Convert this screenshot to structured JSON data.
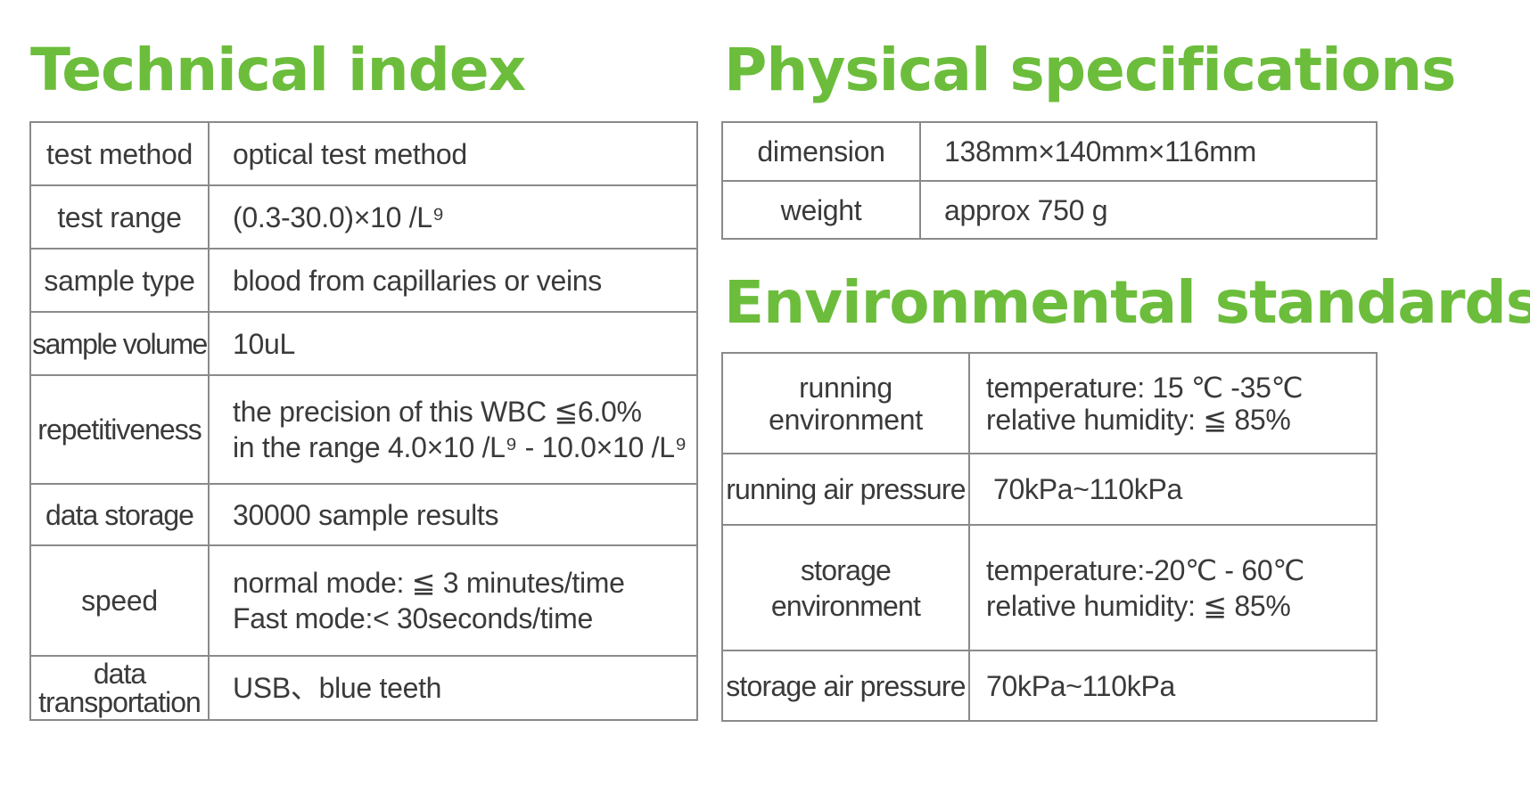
{
  "technical_index": {
    "title": "Technical index",
    "rows": [
      {
        "label": "test method",
        "value": [
          "optical test method"
        ]
      },
      {
        "label": "test range",
        "value": [
          "(0.3-30.0)×10  /L⁹"
        ]
      },
      {
        "label": "sample type",
        "value": [
          "blood from capillaries or veins"
        ]
      },
      {
        "label": "sample volume",
        "value": [
          "10uL"
        ]
      },
      {
        "label": "repetitiveness",
        "value": [
          "the precision of this WBC ≦6.0%",
          "in the range 4.0×10 /L⁹ - 10.0×10 /L⁹"
        ]
      },
      {
        "label": "data storage",
        "value": [
          "30000 sample results"
        ]
      },
      {
        "label": "speed",
        "value": [
          "normal mode: ≦ 3 minutes/time",
          "Fast mode:< 30seconds/time"
        ]
      },
      {
        "label": [
          "data",
          "transportation"
        ],
        "value": [
          "USB、blue teeth"
        ]
      }
    ]
  },
  "physical_specifications": {
    "title": "Physical specifications",
    "rows": [
      {
        "label": "dimension",
        "value": [
          "138mm×140mm×116mm"
        ]
      },
      {
        "label": "weight",
        "value": [
          "approx 750 g"
        ]
      }
    ]
  },
  "environmental_standards": {
    "title": "Environmental standards",
    "rows": [
      {
        "label": [
          "running",
          "environment"
        ],
        "value": [
          "temperature: 15 ℃ -35℃",
          "relative humidity: ≦ 85%"
        ]
      },
      {
        "label": "running air pressure",
        "value": [
          "70kPa~110kPa"
        ]
      },
      {
        "label": "storage environment",
        "value": [
          "temperature:-20℃ - 60℃",
          "relative humidity: ≦ 85%"
        ]
      },
      {
        "label": "storage air pressure",
        "value": [
          "70kPa~110kPa"
        ]
      }
    ]
  },
  "colors": {
    "heading": "#6cbd3c",
    "border": "#8a8a8a",
    "text": "#3a3a3a"
  }
}
